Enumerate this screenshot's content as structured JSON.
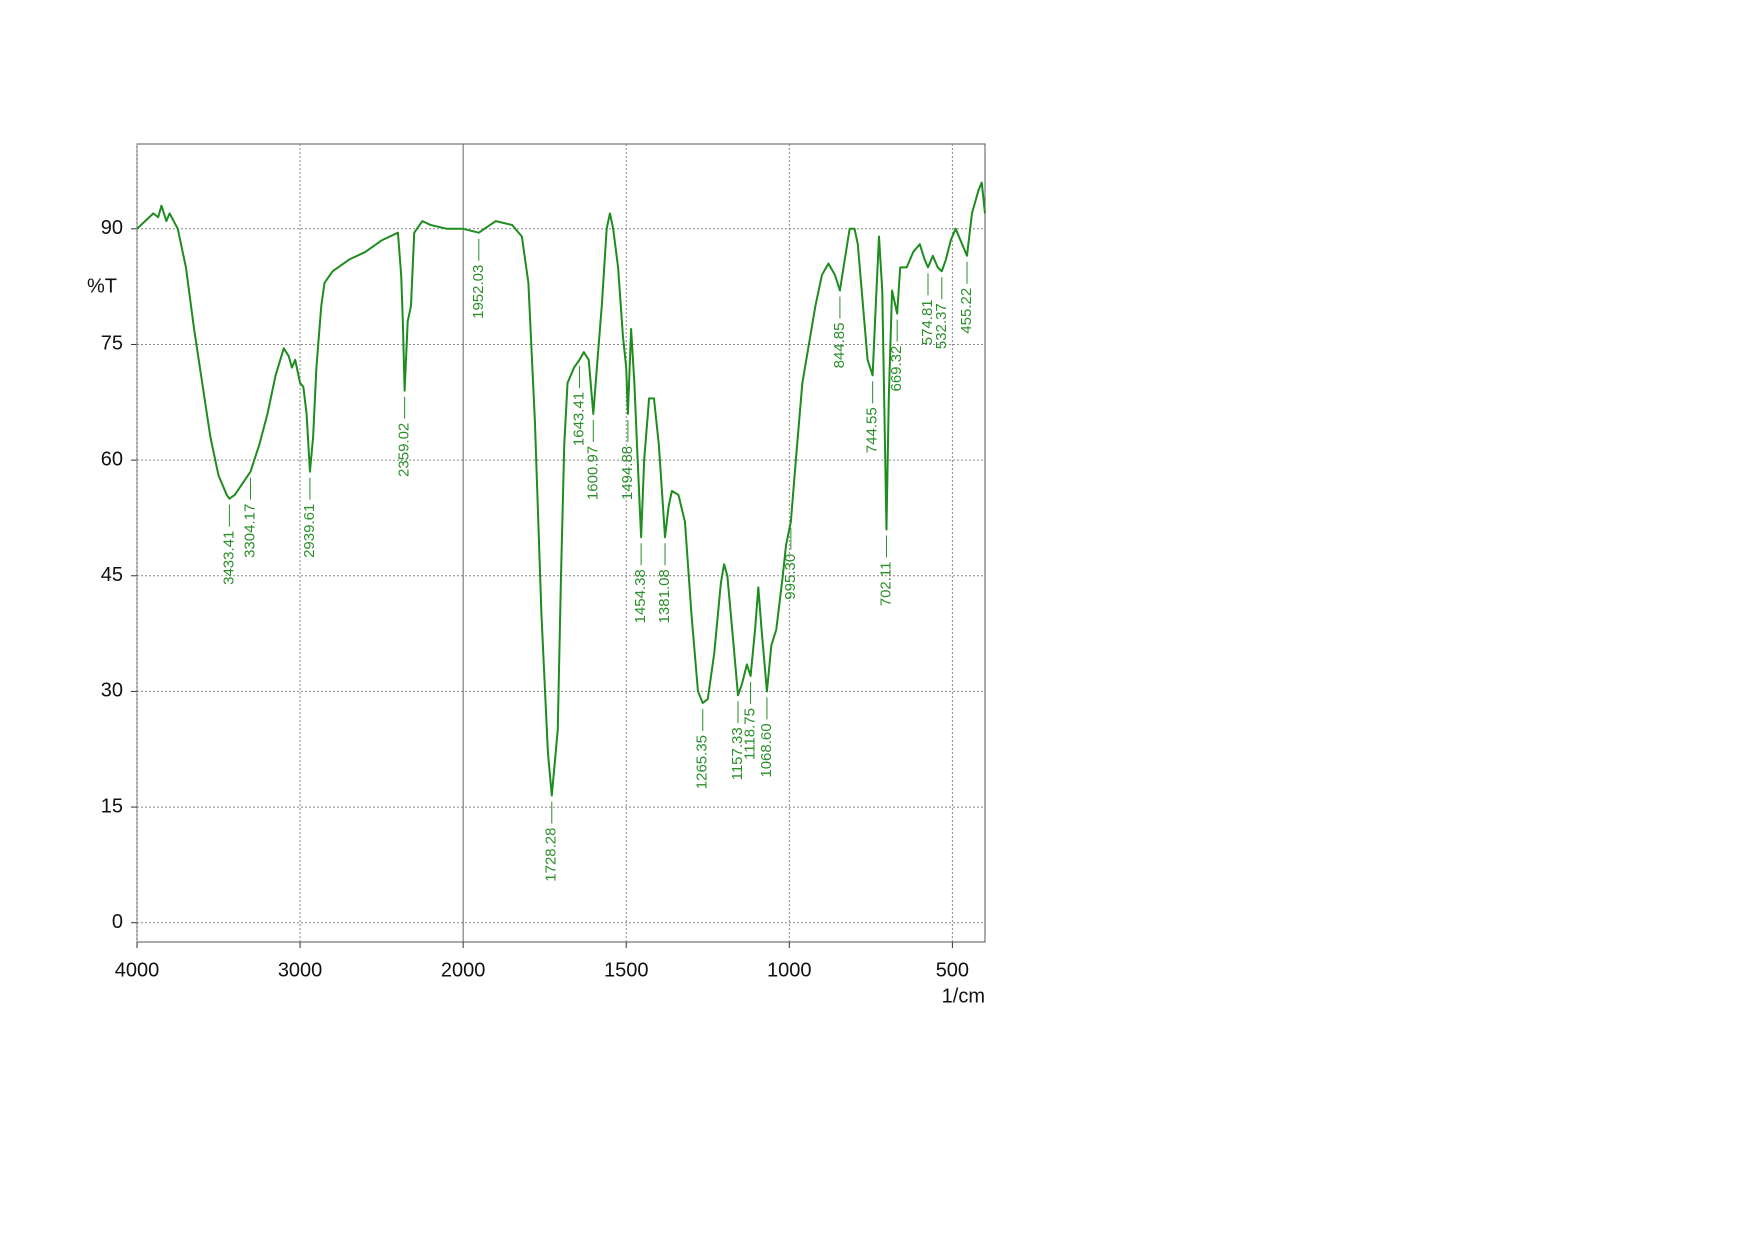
{
  "chart_data": {
    "type": "line",
    "y_label": "%T",
    "x_label": "1/cm",
    "color": "#1e8c1e",
    "label_color": "#2a8f2a",
    "xlim": [
      4000,
      400
    ],
    "xticks": [
      4000,
      3000,
      2000,
      1500,
      1000,
      500
    ],
    "x_break": 2000,
    "x_break_factor": 2,
    "ylim": [
      -2.5,
      101
    ],
    "yticks": [
      0,
      15,
      30,
      45,
      60,
      75,
      90
    ],
    "grid": true,
    "x": [
      4000,
      3950,
      3900,
      3870,
      3850,
      3820,
      3800,
      3750,
      3700,
      3650,
      3600,
      3550,
      3500,
      3450,
      3433.41,
      3400,
      3304.17,
      3250,
      3200,
      3150,
      3100,
      3070,
      3050,
      3030,
      3000,
      2980,
      2960,
      2939.61,
      2920,
      2900,
      2870,
      2850,
      2800,
      2700,
      2600,
      2500,
      2400,
      2380,
      2370,
      2359.02,
      2340,
      2320,
      2300,
      2250,
      2200,
      2100,
      2000,
      1952.03,
      1900,
      1850,
      1820,
      1800,
      1780,
      1760,
      1740,
      1728.28,
      1710,
      1700,
      1690,
      1680,
      1660,
      1643.41,
      1630,
      1615,
      1600.97,
      1590,
      1575,
      1560,
      1550,
      1540,
      1525,
      1510,
      1500,
      1494.88,
      1485,
      1475,
      1465,
      1454.38,
      1445,
      1430,
      1415,
      1400,
      1381.08,
      1370,
      1360,
      1340,
      1320,
      1300,
      1280,
      1265.35,
      1250,
      1230,
      1210,
      1200,
      1190,
      1175,
      1157.33,
      1145,
      1130,
      1118.75,
      1105,
      1095,
      1085,
      1068.6,
      1055,
      1040,
      1020,
      1010,
      995.3,
      980,
      960,
      940,
      920,
      900,
      880,
      860,
      844.85,
      830,
      815,
      800,
      790,
      770,
      760,
      744.55,
      735,
      725,
      715,
      702.11,
      695,
      685,
      669.32,
      660,
      640,
      620,
      600,
      585,
      574.81,
      560,
      545,
      532.37,
      520,
      505,
      490,
      470,
      455.22,
      440,
      420,
      410,
      400
    ],
    "values": [
      90,
      91,
      92,
      91.5,
      93,
      91,
      92,
      90,
      85,
      77,
      70,
      63,
      58,
      55.5,
      55,
      55.5,
      58.5,
      62,
      66,
      71,
      74.5,
      73.5,
      72,
      73,
      70,
      69.5,
      66,
      58.5,
      63,
      72,
      80,
      83,
      84.5,
      86,
      87,
      88.5,
      89.5,
      84,
      78,
      69,
      78,
      80,
      89.5,
      91,
      90.5,
      90,
      90,
      89.5,
      91,
      90.5,
      89,
      83,
      65,
      40,
      22,
      16.5,
      25,
      45,
      62,
      70,
      72,
      73,
      74,
      73,
      66,
      72,
      80,
      90,
      92,
      90,
      85,
      76,
      72,
      66,
      77,
      70,
      60,
      50,
      60,
      68,
      68,
      62,
      50,
      54,
      56,
      55.5,
      52,
      40,
      30,
      28.5,
      29,
      35,
      44,
      46.5,
      45,
      38,
      29.5,
      31,
      33.5,
      32,
      38,
      43.5,
      38,
      30,
      36,
      38,
      45,
      49,
      52,
      60,
      70,
      75,
      80,
      84,
      85.5,
      84,
      82,
      86,
      90,
      90,
      88,
      78,
      73,
      71,
      80,
      89,
      82,
      51,
      68,
      82,
      79,
      85,
      85,
      87,
      88,
      86,
      85,
      86.5,
      85,
      84.5,
      86,
      88.5,
      90,
      88,
      86.5,
      92,
      95,
      96,
      92
    ],
    "peaks": [
      {
        "x": 3433.41,
        "y": 55,
        "label": "3433.41"
      },
      {
        "x": 3304.17,
        "y": 58.5,
        "label": "3304.17"
      },
      {
        "x": 2939.61,
        "y": 58.5,
        "label": "2939.61"
      },
      {
        "x": 2359.02,
        "y": 69,
        "label": "2359.02"
      },
      {
        "x": 1952.03,
        "y": 89.5,
        "label": "1952.03"
      },
      {
        "x": 1728.28,
        "y": 16.5,
        "label": "1728.28"
      },
      {
        "x": 1643.41,
        "y": 73,
        "label": "1643.41"
      },
      {
        "x": 1600.97,
        "y": 66,
        "label": "1600.97"
      },
      {
        "x": 1494.88,
        "y": 66,
        "label": "1494.88"
      },
      {
        "x": 1454.38,
        "y": 50,
        "label": "1454.38"
      },
      {
        "x": 1381.08,
        "y": 50,
        "label": "1381.08"
      },
      {
        "x": 1265.35,
        "y": 28.5,
        "label": "1265.35"
      },
      {
        "x": 1157.33,
        "y": 29.5,
        "label": "1157.33"
      },
      {
        "x": 1118.75,
        "y": 32,
        "label": "1118.75"
      },
      {
        "x": 1068.6,
        "y": 30,
        "label": "1068.60"
      },
      {
        "x": 995.3,
        "y": 52,
        "label": "995.30"
      },
      {
        "x": 844.85,
        "y": 82,
        "label": "844.85"
      },
      {
        "x": 744.55,
        "y": 71,
        "label": "744.55"
      },
      {
        "x": 702.11,
        "y": 51,
        "label": "702.11"
      },
      {
        "x": 669.32,
        "y": 79,
        "label": "669.32"
      },
      {
        "x": 574.81,
        "y": 85,
        "label": "574.81"
      },
      {
        "x": 532.37,
        "y": 84.5,
        "label": "532.37"
      },
      {
        "x": 455.22,
        "y": 86.5,
        "label": "455.22"
      }
    ]
  }
}
